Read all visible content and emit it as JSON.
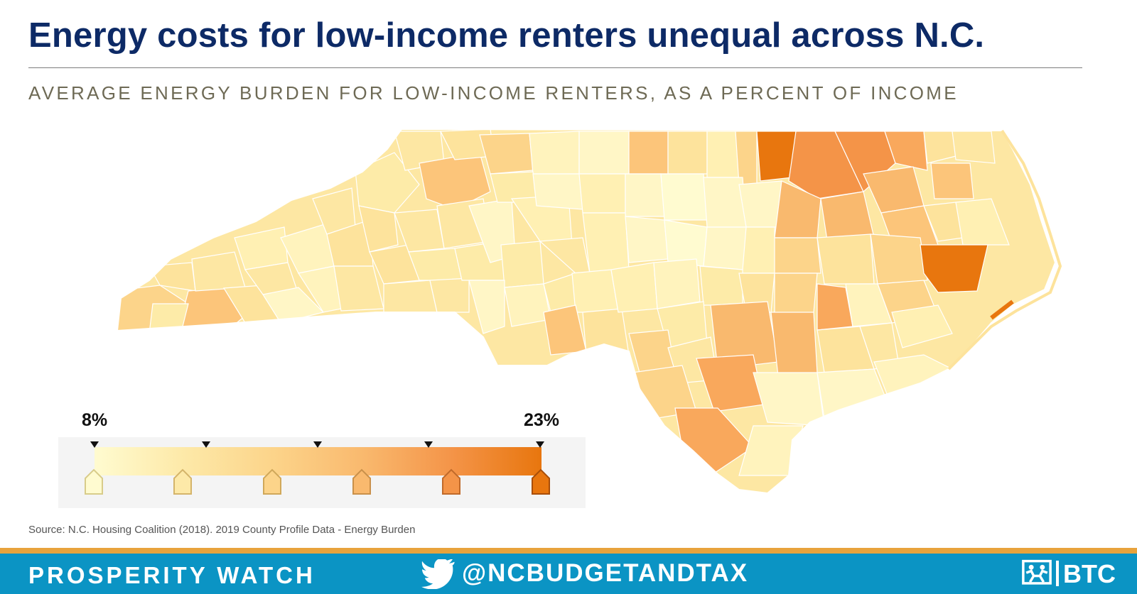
{
  "header": {
    "title": "Energy costs for low-income renters unequal across N.C.",
    "subtitle": "AVERAGE ENERGY BURDEN FOR LOW-INCOME RENTERS, AS A PERCENT OF INCOME"
  },
  "map": {
    "region": "North Carolina counties",
    "palette": [
      "#fffbd0",
      "#fde9a8",
      "#fcd48a",
      "#f9b96e",
      "#f49448",
      "#e8760e"
    ],
    "outline_color": "#ffffff"
  },
  "legend": {
    "min_label": "8%",
    "max_label": "23%",
    "min_value": 8,
    "max_value": 23
  },
  "source": "Source: N.C. Housing Coalition (2018). 2019 County Profile Data - Energy Burden",
  "footer": {
    "left_text": "PROSPERITY WATCH",
    "handle": "@NCBUDGETANDTAX",
    "logo_text": "BTC",
    "bar_color": "#0b94c4",
    "accent_color": "#e8a33c"
  }
}
